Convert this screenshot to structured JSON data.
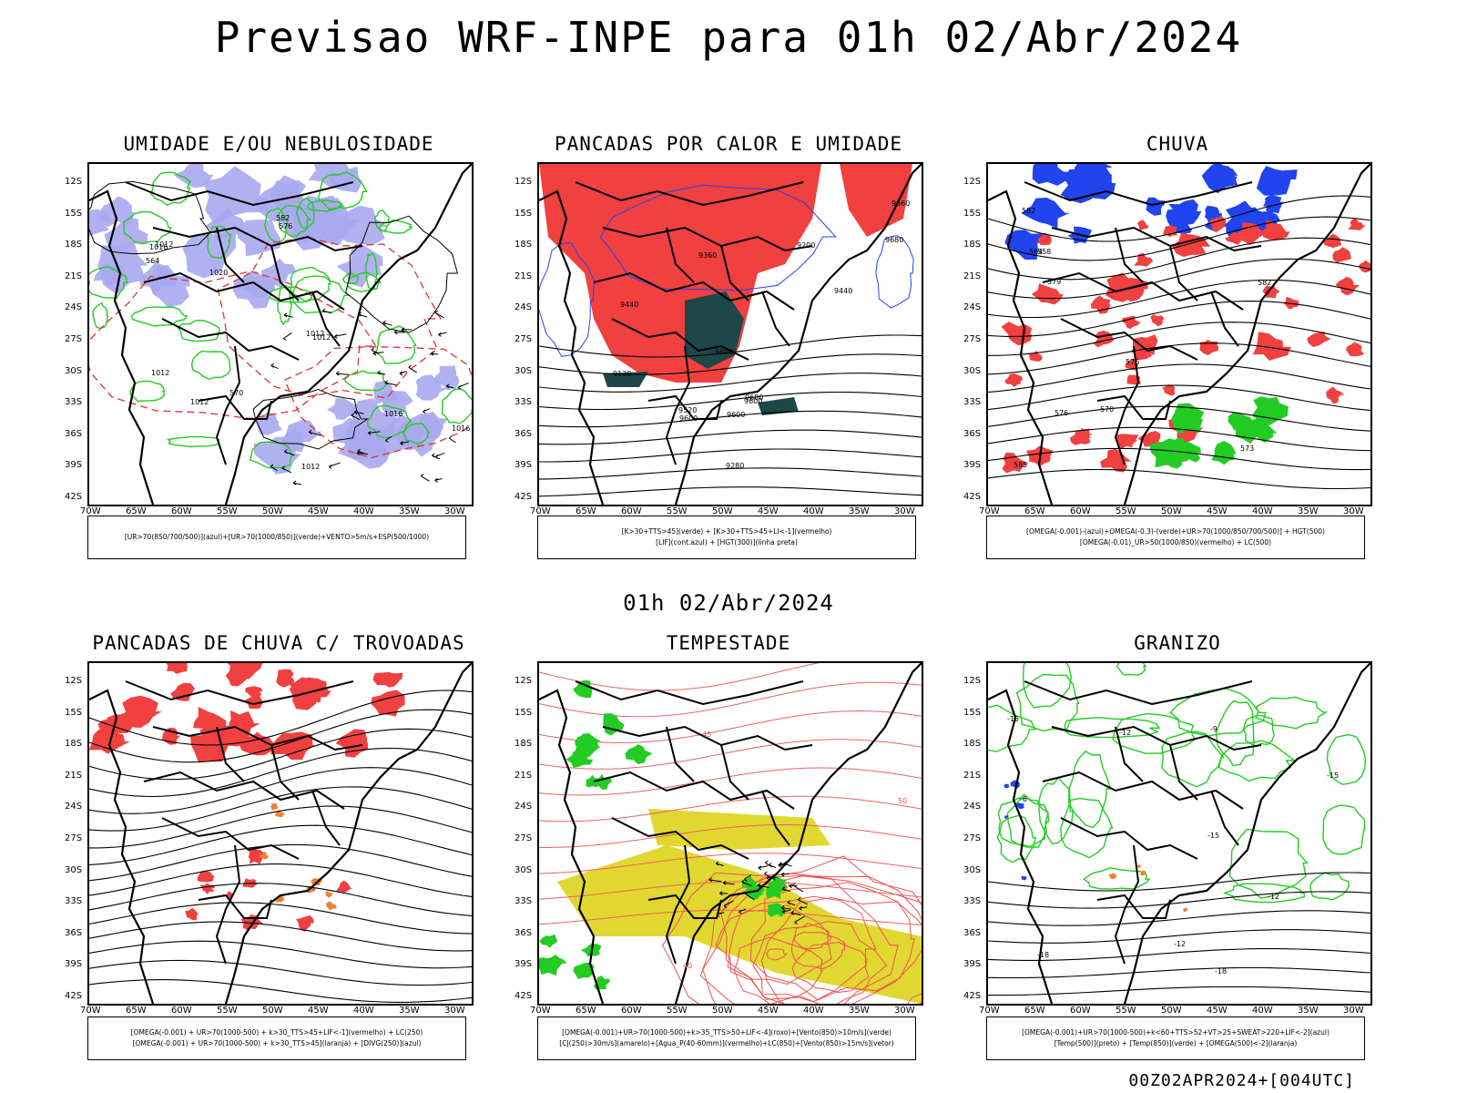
{
  "title": "Previsao WRF-INPE  para 01h 02/Abr/2024",
  "subtitle": "01h 02/Abr/2024",
  "footer": "00Z02APR2024+[004UTC]",
  "lat_labels": [
    "12S",
    "15S",
    "18S",
    "21S",
    "24S",
    "27S",
    "30S",
    "33S",
    "36S",
    "39S",
    "42S"
  ],
  "lon_labels": [
    "70W",
    "65W",
    "60W",
    "55W",
    "50W",
    "45W",
    "40W",
    "35W",
    "30W"
  ],
  "colors": {
    "humidity_blue": "#a8a8f0",
    "rain_red": "#f04040",
    "contour_green": "#22cc22",
    "rain_blue": "#2244ee",
    "dark_teal": "#1e4848",
    "orange": "#f08030",
    "yellow": "#e0d830"
  },
  "panels": [
    {
      "title": "UMIDADE E/OU NEBULOSIDADE",
      "legend": [
        "[UR>70(850/700/500)](azul)+[UR>70(1000/850)](verde)+VENTO>5m/s+ESP(500/1000)"
      ],
      "contour_labels": [
        "1012",
        "1012",
        "1012",
        "1012",
        "1016",
        "1012",
        "1012",
        "1016",
        "1016",
        "1020",
        "576",
        "570",
        "582",
        "564"
      ]
    },
    {
      "title": "PANCADAS POR CALOR E UMIDADE",
      "legend": [
        "[K>30+TTS>45](verde) + [K>30+TTS>45+LI<-1](vermelho)",
        "[LIF](cont.azul) + [HGT(300)](linha preta)"
      ],
      "contour_labels": [
        "9680",
        "9680",
        "9600",
        "9600",
        "9520",
        "9440",
        "9360",
        "9280",
        "9200",
        "9120",
        "9360",
        "9440",
        "9600",
        "9600"
      ]
    },
    {
      "title": "CHUVA",
      "legend": [
        "[OMEGA(-0.001)-(azul)+OMEGA(-0.3)-(verde)+UR>70(1000/850/700/500)] + HGT(500)",
        "[OMEGA(-0.01)_UR>50(1000/850)(vermelho) + LC(500)"
      ],
      "contour_labels": [
        "585",
        "582",
        "579",
        "576",
        "573",
        "570",
        "564",
        "558",
        "576",
        "582"
      ]
    },
    {
      "title": "PANCADAS DE CHUVA C/ TROVOADAS",
      "legend": [
        "[OMEGA(-0.001) + UR>70(1000-500) + k>30_TTS>45+LIF<-1](vermelho) + LC(250)",
        "[OMEGA(-0.001) + UR>70(1000-500) + k>30_TTS>45](laranja) + [DIVG(250)](azul)"
      ],
      "contour_labels": []
    },
    {
      "title": "TEMPESTADE",
      "legend": [
        "[OMEGA(-0.001)+UR>70(1000-500)+k>35_TTS>50+LIF<-4](roxo)+[Vento(850)>10m/s](verde)",
        "[CJ(250)>30m/s](amarelo)+[Agua_P(40-60mm)](vermelho)+LC(850)+[Vento(850)>15m/s](vetor)"
      ],
      "contour_labels": [
        "40",
        "40",
        "50",
        "45"
      ]
    },
    {
      "title": "GRANIZO",
      "legend": [
        "[OMEGA(-0.001)+UR>70(1000-500)+k<60+TTS>52+VT>25+SWEAT>220+LIF<-2](azul)",
        "[Temp(500)](preto) + [Temp(850)](verde) + [OMEGA(500)<-2](laranja)"
      ],
      "contour_labels": [
        "-12",
        "-12",
        "-15",
        "-15",
        "-18",
        "-15",
        "-12",
        "-18",
        "-6",
        "-9"
      ]
    }
  ]
}
